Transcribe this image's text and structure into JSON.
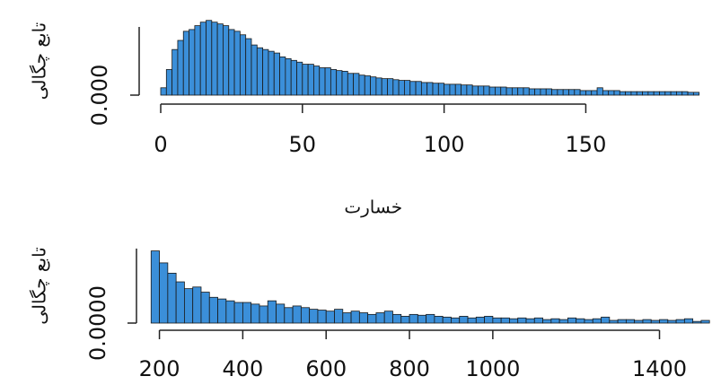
{
  "chart_data": [
    {
      "type": "histogram",
      "xlabel": "خسارت",
      "ylabel": "تابع چگالی",
      "color": "#3b8fd9",
      "bins": [
        0,
        2,
        4,
        6,
        8,
        10,
        12,
        14,
        16,
        18,
        20,
        22,
        24,
        26,
        28,
        30,
        32,
        34,
        36,
        38,
        40,
        42,
        44,
        46,
        48,
        50,
        52,
        54,
        56,
        58,
        60,
        62,
        64,
        66,
        68,
        70,
        72,
        74,
        76,
        78,
        80,
        82,
        84,
        86,
        88,
        90,
        92,
        94,
        96,
        98,
        100,
        102,
        104,
        106,
        108,
        110,
        112,
        114,
        116,
        118,
        120,
        122,
        124,
        126,
        128,
        130,
        132,
        134,
        136,
        138,
        140,
        142,
        144,
        146,
        148,
        150,
        152,
        154,
        156,
        158,
        160,
        162,
        164,
        166,
        168,
        170,
        172,
        174,
        176,
        178,
        180,
        182,
        184,
        186,
        188,
        190
      ],
      "values": [
        0.0021,
        0.0073,
        0.013,
        0.0156,
        0.0182,
        0.0187,
        0.0198,
        0.0208,
        0.0213,
        0.0208,
        0.0203,
        0.0198,
        0.0187,
        0.0182,
        0.0172,
        0.0161,
        0.0143,
        0.0135,
        0.013,
        0.0125,
        0.012,
        0.0109,
        0.0104,
        0.0099,
        0.0094,
        0.0088,
        0.0088,
        0.0083,
        0.0078,
        0.0078,
        0.0073,
        0.007,
        0.0068,
        0.0062,
        0.0062,
        0.0057,
        0.0055,
        0.0052,
        0.0049,
        0.0047,
        0.0047,
        0.0044,
        0.0042,
        0.0042,
        0.0039,
        0.0039,
        0.0036,
        0.0036,
        0.0034,
        0.0034,
        0.0031,
        0.0031,
        0.0031,
        0.0029,
        0.0029,
        0.0026,
        0.0026,
        0.0026,
        0.0023,
        0.0023,
        0.0023,
        0.0021,
        0.0021,
        0.0021,
        0.0021,
        0.0018,
        0.0018,
        0.0018,
        0.0018,
        0.0016,
        0.0016,
        0.0016,
        0.0016,
        0.0016,
        0.0013,
        0.0013,
        0.0013,
        0.0021,
        0.0013,
        0.0013,
        0.0013,
        0.001,
        0.001,
        0.001,
        0.001,
        0.001,
        0.001,
        0.001,
        0.001,
        0.001,
        0.001,
        0.001,
        0.001,
        0.0008,
        0.0008
      ],
      "xlim": [
        0,
        192
      ],
      "xticks": [
        0,
        50,
        100,
        150
      ],
      "ylim": [
        0,
        0.022
      ],
      "yticks": [
        {
          "value": 0,
          "label": "0.000"
        }
      ]
    },
    {
      "type": "histogram",
      "ylabel": "تابع چگالی",
      "color": "#3b8fd9",
      "bins": [
        180,
        200,
        220,
        240,
        260,
        280,
        300,
        320,
        340,
        360,
        380,
        400,
        420,
        440,
        460,
        480,
        500,
        520,
        540,
        560,
        580,
        600,
        620,
        640,
        660,
        680,
        700,
        720,
        740,
        760,
        780,
        800,
        820,
        840,
        860,
        880,
        900,
        920,
        940,
        960,
        980,
        1000,
        1020,
        1040,
        1060,
        1080,
        1100,
        1120,
        1140,
        1160,
        1180,
        1200,
        1220,
        1240,
        1260,
        1280,
        1300,
        1320,
        1340,
        1360,
        1380,
        1400,
        1420,
        1440,
        1460,
        1480,
        1500,
        1520
      ],
      "values": [
        0.0035,
        0.00292,
        0.00242,
        0.002,
        0.00167,
        0.00175,
        0.0015,
        0.00125,
        0.00117,
        0.00108,
        0.001,
        0.001,
        0.00092,
        0.00083,
        0.00108,
        0.00092,
        0.00075,
        0.00083,
        0.00075,
        0.00067,
        0.00063,
        0.00058,
        0.00067,
        0.0005,
        0.00058,
        0.0005,
        0.00042,
        0.0005,
        0.00058,
        0.00042,
        0.00033,
        0.00042,
        0.00038,
        0.00042,
        0.00033,
        0.00029,
        0.00025,
        0.00033,
        0.00025,
        0.00029,
        0.00033,
        0.00025,
        0.00025,
        0.00021,
        0.00025,
        0.00021,
        0.00025,
        0.00017,
        0.00021,
        0.00017,
        0.00025,
        0.00021,
        0.00017,
        0.00021,
        0.00029,
        0.00013,
        0.00017,
        0.00017,
        0.00013,
        0.00017,
        0.00013,
        0.00017,
        0.00013,
        0.00017,
        0.00021,
        8e-05,
        0.00013
      ],
      "xlim": [
        188,
        1526
      ],
      "xticks": [
        200,
        400,
        600,
        800,
        1000,
        1400
      ],
      "ylim": [
        0,
        0.0037
      ],
      "yticks": [
        {
          "value": 0,
          "label": "0.0000"
        }
      ]
    }
  ]
}
